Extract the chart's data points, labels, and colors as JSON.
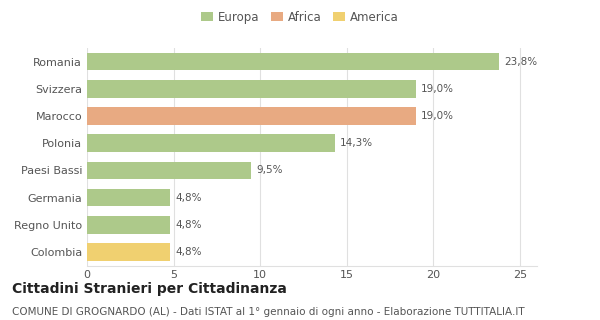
{
  "categories": [
    "Romania",
    "Svizzera",
    "Marocco",
    "Polonia",
    "Paesi Bassi",
    "Germania",
    "Regno Unito",
    "Colombia"
  ],
  "values": [
    23.8,
    19.0,
    19.0,
    14.3,
    9.5,
    4.8,
    4.8,
    4.8
  ],
  "labels": [
    "23,8%",
    "19,0%",
    "19,0%",
    "14,3%",
    "9,5%",
    "4,8%",
    "4,8%",
    "4,8%"
  ],
  "bar_colors": [
    "#adc98a",
    "#adc98a",
    "#e8aa82",
    "#adc98a",
    "#adc98a",
    "#adc98a",
    "#adc98a",
    "#f0d070"
  ],
  "legend_labels": [
    "Europa",
    "Africa",
    "America"
  ],
  "legend_colors": [
    "#adc98a",
    "#e8aa82",
    "#f0d070"
  ],
  "title": "Cittadini Stranieri per Cittadinanza",
  "subtitle": "COMUNE DI GROGNARDO (AL) - Dati ISTAT al 1° gennaio di ogni anno - Elaborazione TUTTITALIA.IT",
  "xlim": [
    0,
    26
  ],
  "xticks": [
    0,
    5,
    10,
    15,
    20,
    25
  ],
  "background_color": "#ffffff",
  "grid_color": "#e0e0e0",
  "bar_height": 0.65,
  "title_fontsize": 10,
  "subtitle_fontsize": 7.5,
  "label_fontsize": 7.5,
  "tick_fontsize": 8,
  "legend_fontsize": 8.5
}
